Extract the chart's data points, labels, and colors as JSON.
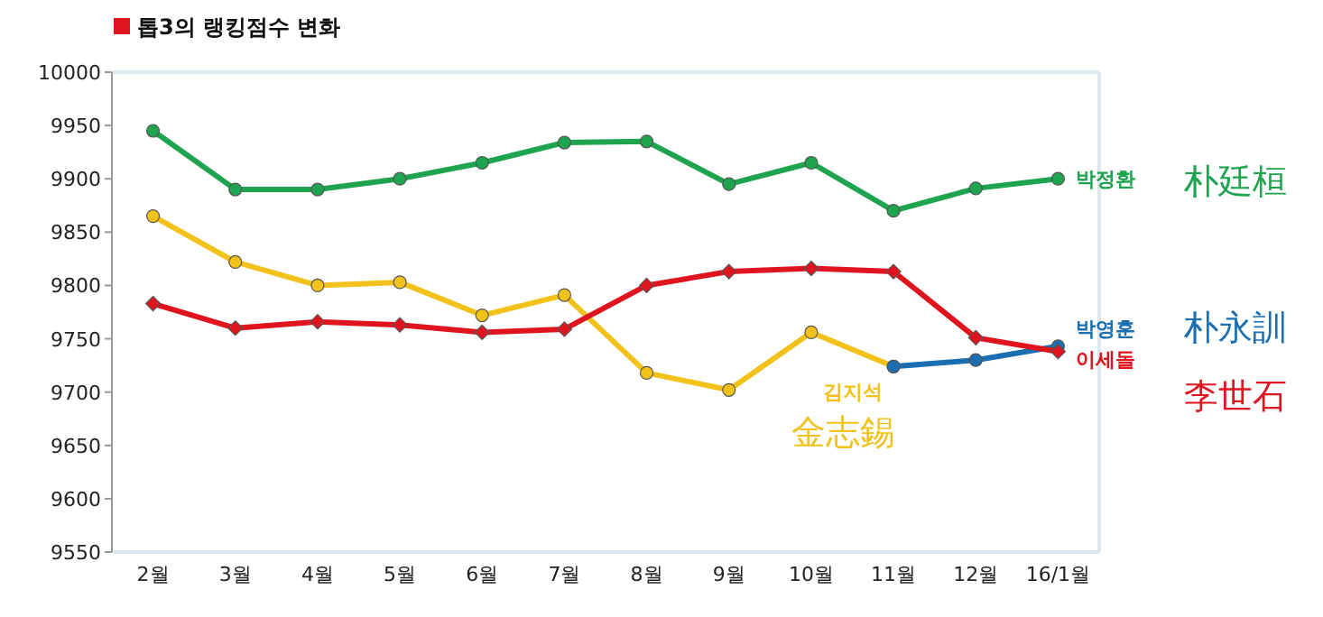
{
  "chart_data": {
    "type": "line",
    "title": "톱3의 랭킹점수 변화",
    "categories": [
      "2월",
      "3월",
      "4월",
      "5월",
      "6월",
      "7월",
      "8월",
      "9월",
      "10월",
      "11월",
      "12월",
      "16/1월"
    ],
    "series": [
      {
        "name": "박정환",
        "color": "#1ea34f",
        "marker": "circle",
        "values": [
          9945,
          9890,
          9890,
          9900,
          9915,
          9934,
          9935,
          9895,
          9915,
          9870,
          9891,
          9900
        ]
      },
      {
        "name": "김지석",
        "color": "#f2c21b",
        "marker": "circle",
        "values": [
          9865,
          9822,
          9800,
          9803,
          9772,
          9791,
          9718,
          9702,
          9756,
          9724,
          null,
          null
        ]
      },
      {
        "name": "박영훈",
        "color": "#1b6fb0",
        "marker": "circle",
        "values": [
          null,
          null,
          null,
          null,
          null,
          null,
          null,
          null,
          null,
          9724,
          9730,
          9743
        ]
      },
      {
        "name": "이세돌",
        "color": "#e0141e",
        "marker": "diamond",
        "values": [
          9783,
          9760,
          9766,
          9763,
          9756,
          9759,
          9800,
          9813,
          9816,
          9813,
          9751,
          9738
        ]
      }
    ],
    "annotations": [
      "朴廷桓",
      "金志錫",
      "朴永訓",
      "李世石"
    ],
    "ylim": [
      9550,
      10000
    ],
    "yticks": [
      9550,
      9600,
      9650,
      9700,
      9750,
      9800,
      9850,
      9900,
      9950,
      10000
    ],
    "grid": false
  }
}
